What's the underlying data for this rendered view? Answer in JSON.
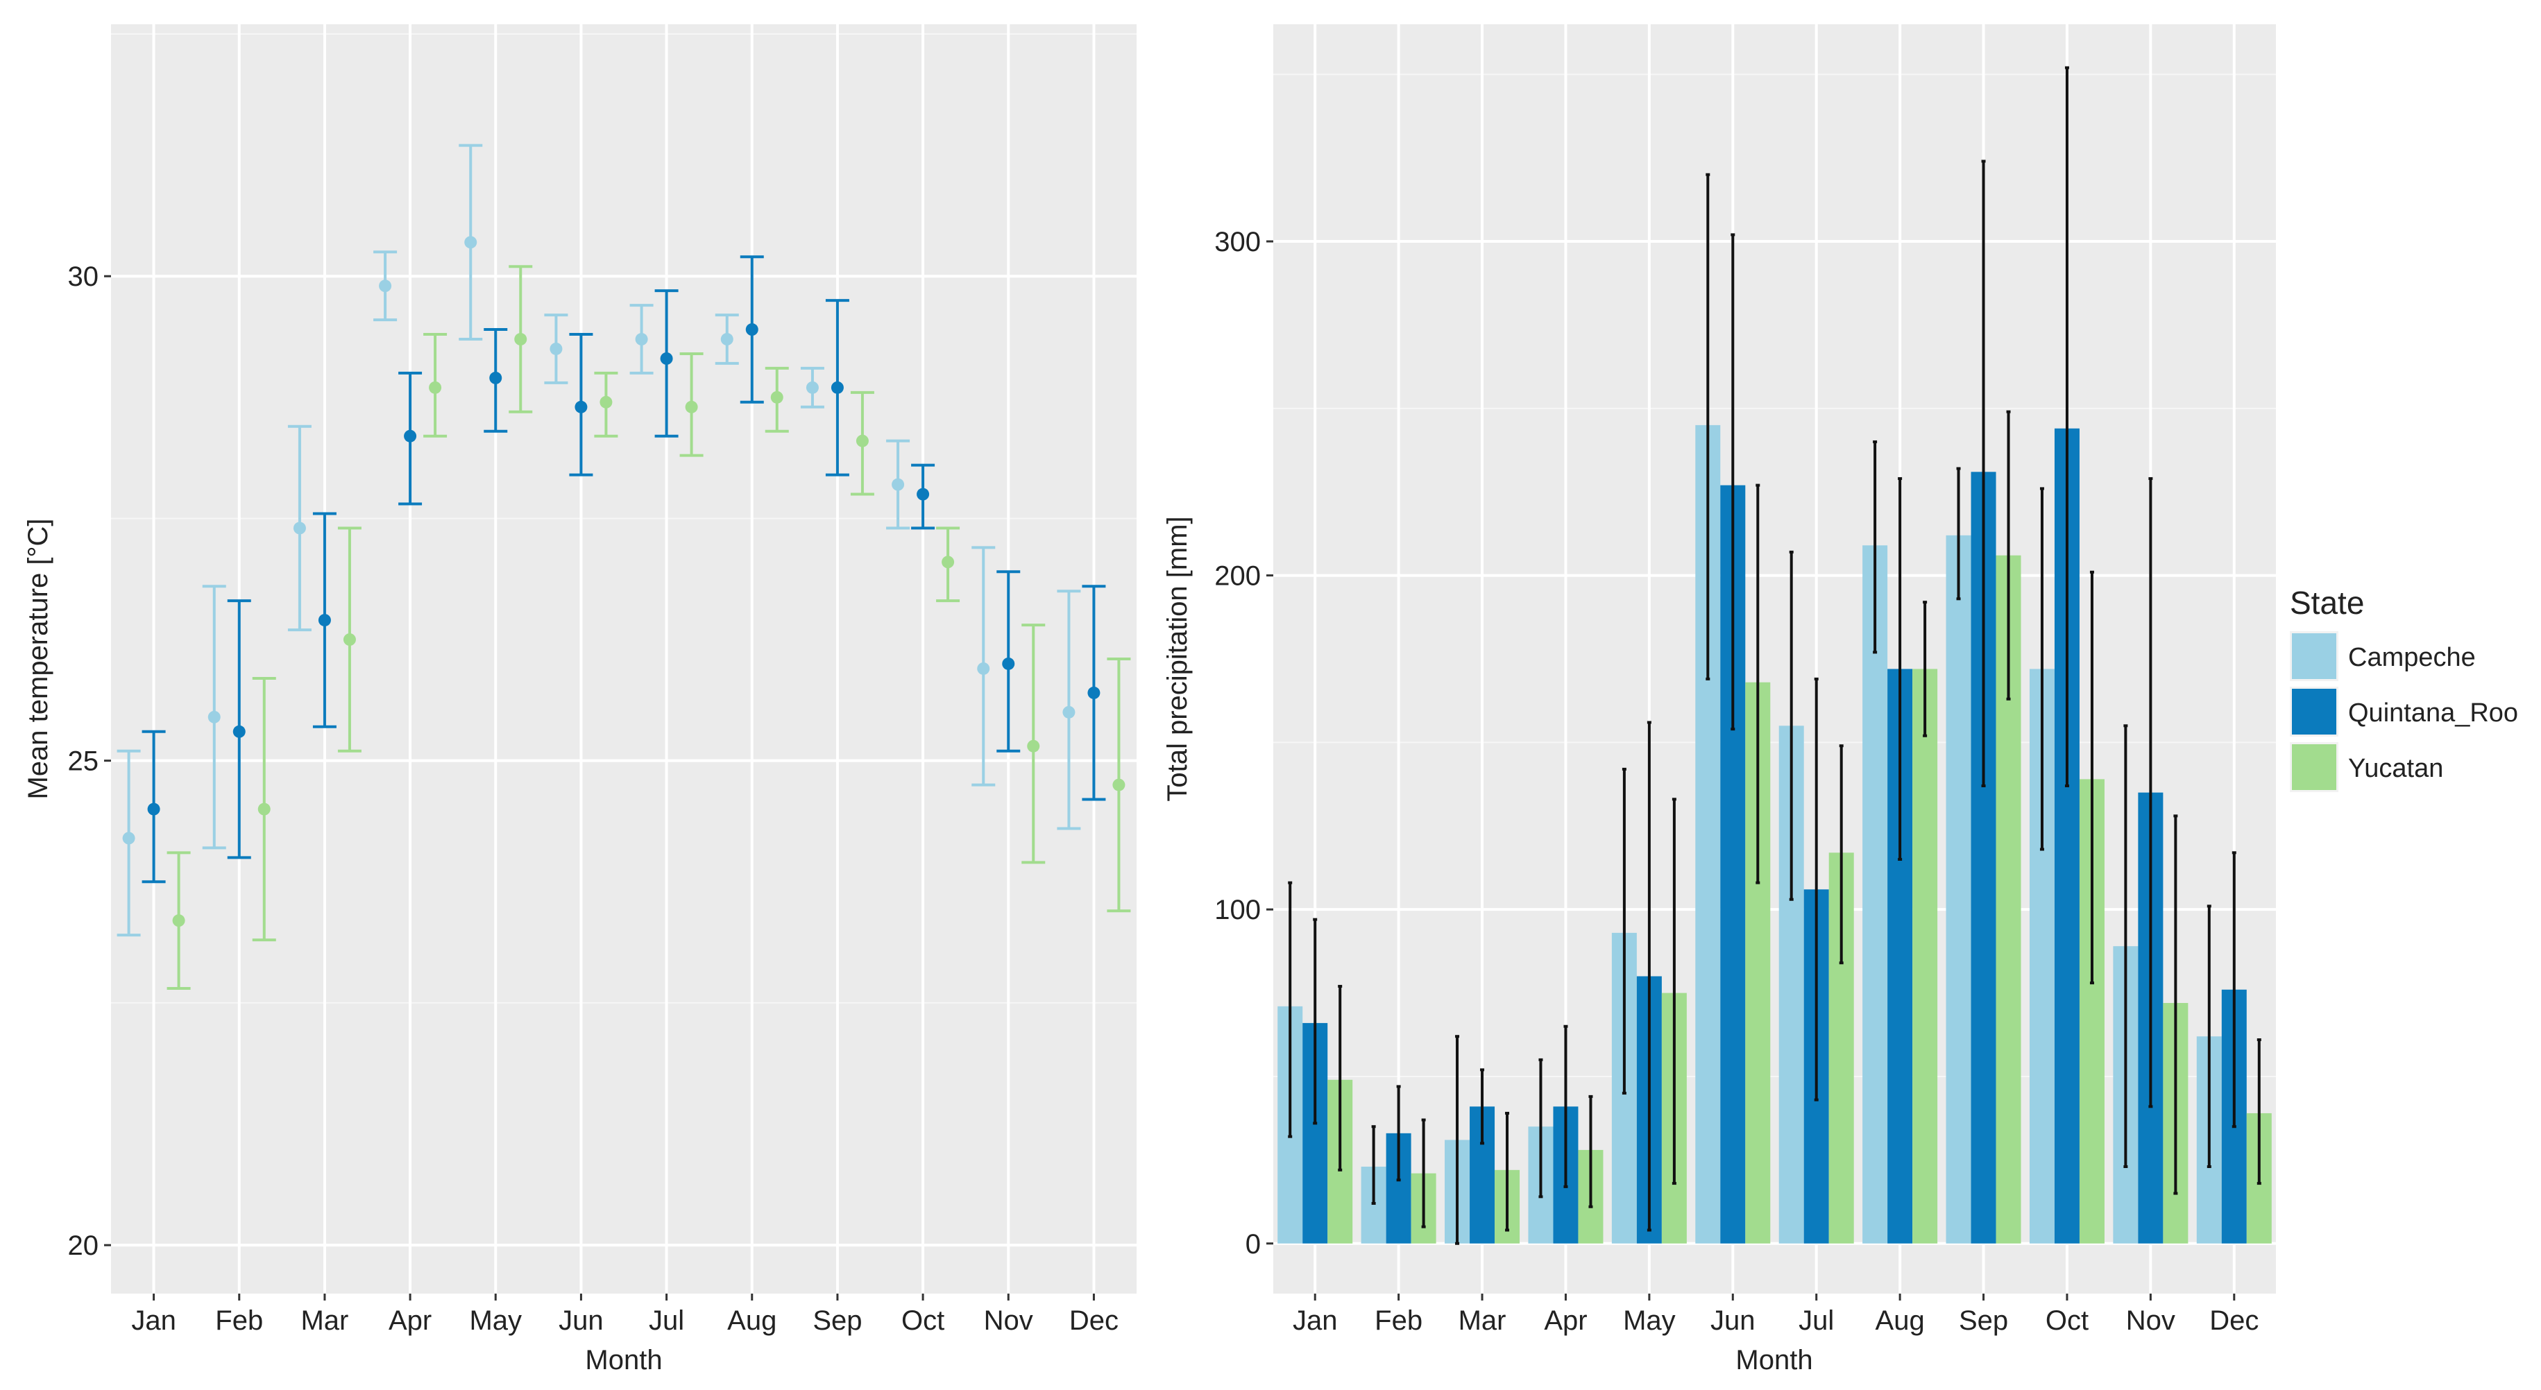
{
  "legend": {
    "title": "State",
    "items": [
      {
        "label": "Campeche",
        "color": "#9ad0e4"
      },
      {
        "label": "Quintana_Roo",
        "color": "#0b7bbd"
      },
      {
        "label": "Yucatan",
        "color": "#a2dc8e"
      }
    ]
  },
  "chart_data": [
    {
      "type": "scatter",
      "subtype": "dot-with-error-bars",
      "title": "",
      "xlabel": "Month",
      "ylabel": "Mean temperature [°C]",
      "categories": [
        "Jan",
        "Feb",
        "Mar",
        "Apr",
        "May",
        "Jun",
        "Jul",
        "Aug",
        "Sep",
        "Oct",
        "Nov",
        "Dec"
      ],
      "ylim": [
        19.5,
        32.6
      ],
      "yticks": [
        20,
        25,
        30
      ],
      "grid": true,
      "legend": "none",
      "series": [
        {
          "name": "Campeche",
          "values": [
            24.2,
            25.45,
            27.4,
            29.9,
            30.35,
            29.25,
            29.35,
            29.35,
            28.85,
            27.85,
            25.95,
            25.5
          ],
          "lower": [
            23.2,
            24.1,
            26.35,
            29.55,
            29.35,
            28.9,
            29.0,
            29.1,
            28.65,
            27.4,
            24.75,
            24.3
          ],
          "upper": [
            25.1,
            26.8,
            28.45,
            30.25,
            31.35,
            29.6,
            29.7,
            29.6,
            29.05,
            28.3,
            27.2,
            26.75
          ]
        },
        {
          "name": "Quintana_Roo",
          "values": [
            24.5,
            25.3,
            26.45,
            28.35,
            28.95,
            28.65,
            29.15,
            29.45,
            28.85,
            27.75,
            26.0,
            25.7
          ],
          "lower": [
            23.75,
            24.0,
            25.35,
            27.65,
            28.4,
            27.95,
            28.35,
            28.7,
            27.95,
            27.4,
            25.1,
            24.6
          ],
          "upper": [
            25.3,
            26.65,
            27.55,
            29.0,
            29.45,
            29.4,
            29.85,
            30.2,
            29.75,
            28.05,
            26.95,
            26.8
          ]
        },
        {
          "name": "Yucatan",
          "values": [
            23.35,
            24.5,
            26.25,
            28.85,
            29.35,
            28.7,
            28.65,
            28.75,
            28.3,
            27.05,
            25.15,
            24.75
          ],
          "lower": [
            22.65,
            23.15,
            25.1,
            28.35,
            28.6,
            28.35,
            28.15,
            28.4,
            27.75,
            26.65,
            23.95,
            23.45
          ],
          "upper": [
            24.05,
            25.85,
            27.4,
            29.4,
            30.1,
            29.0,
            29.2,
            29.05,
            28.8,
            27.4,
            26.4,
            26.05
          ]
        }
      ]
    },
    {
      "type": "bar",
      "subtype": "grouped-bars-with-error-bars",
      "title": "",
      "xlabel": "Month",
      "ylabel": "Total precipitation [mm]",
      "categories": [
        "Jan",
        "Feb",
        "Mar",
        "Apr",
        "May",
        "Jun",
        "Jul",
        "Aug",
        "Sep",
        "Oct",
        "Nov",
        "Dec"
      ],
      "ylim": [
        -15,
        365
      ],
      "yticks": [
        0,
        100,
        200,
        300
      ],
      "grid": true,
      "legend": "right",
      "series": [
        {
          "name": "Campeche",
          "values": [
            71,
            23,
            31,
            35,
            93,
            245,
            155,
            209,
            212,
            172,
            89,
            62
          ],
          "lower": [
            32,
            12,
            0,
            14,
            45,
            169,
            103,
            177,
            193,
            118,
            23,
            23
          ],
          "upper": [
            108,
            35,
            62,
            55,
            142,
            320,
            207,
            240,
            232,
            226,
            155,
            101
          ]
        },
        {
          "name": "Quintana_Roo",
          "values": [
            66,
            33,
            41,
            41,
            80,
            227,
            106,
            172,
            231,
            244,
            135,
            76
          ],
          "lower": [
            36,
            19,
            30,
            17,
            4,
            154,
            43,
            115,
            137,
            137,
            41,
            35
          ],
          "upper": [
            97,
            47,
            52,
            65,
            156,
            302,
            169,
            229,
            324,
            352,
            229,
            117
          ]
        },
        {
          "name": "Yucatan",
          "values": [
            49,
            21,
            22,
            28,
            75,
            168,
            117,
            172,
            206,
            139,
            72,
            39
          ],
          "lower": [
            22,
            5,
            4,
            11,
            18,
            108,
            84,
            152,
            163,
            78,
            15,
            18
          ],
          "upper": [
            77,
            37,
            39,
            44,
            133,
            227,
            149,
            192,
            249,
            201,
            128,
            61
          ]
        }
      ]
    }
  ]
}
